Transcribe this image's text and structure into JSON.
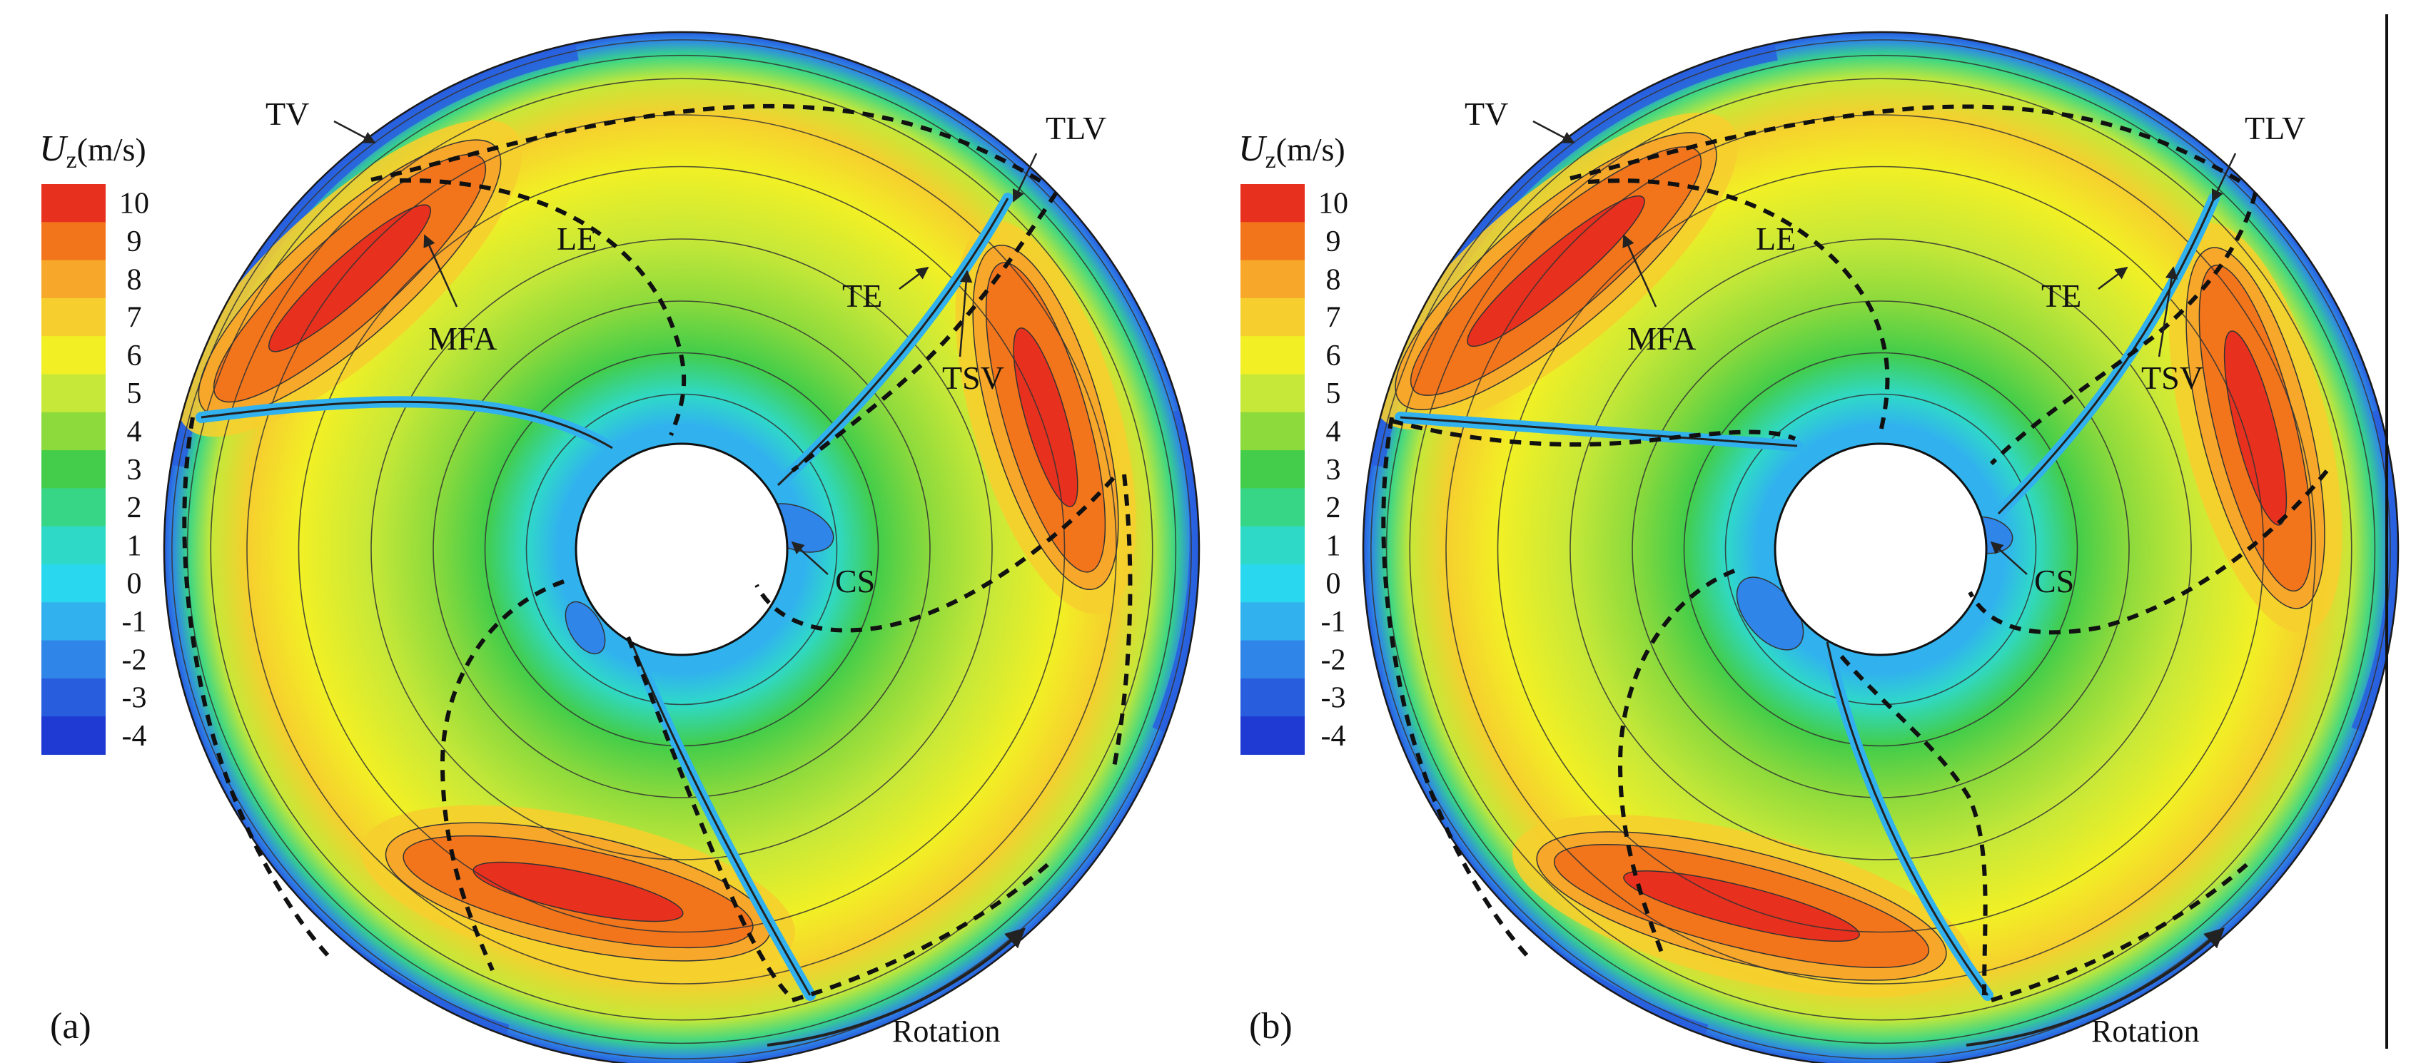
{
  "panels": [
    {
      "id": "a",
      "panel_label": "(a)",
      "colorbar": {
        "quantity_symbol": "U",
        "quantity_subscript": "z",
        "unit": "(m/s)",
        "ticks": [
          "10",
          "9",
          "8",
          "7",
          "6",
          "5",
          "4",
          "3",
          "2",
          "1",
          "0",
          "-1",
          "-2",
          "-3",
          "-4"
        ],
        "colors": [
          "#e8301e",
          "#f2751b",
          "#f7a82a",
          "#f6cf2e",
          "#f2f025",
          "#c6e838",
          "#8cda3c",
          "#43cd4a",
          "#37d687",
          "#2fd9c8",
          "#29d8ee",
          "#31b2ee",
          "#2f86e8",
          "#285ede",
          "#1e3ad2"
        ]
      },
      "annotations": [
        "TV",
        "LE",
        "MFA",
        "TE",
        "TLV",
        "TSV",
        "CS"
      ],
      "rotation_label": "Rotation"
    },
    {
      "id": "b",
      "panel_label": "(b)",
      "colorbar": {
        "quantity_symbol": "U",
        "quantity_subscript": "z",
        "unit": "(m/s)",
        "ticks": [
          "10",
          "9",
          "8",
          "7",
          "6",
          "5",
          "4",
          "3",
          "2",
          "1",
          "0",
          "-1",
          "-2",
          "-3",
          "-4"
        ],
        "colors": [
          "#e8301e",
          "#f2751b",
          "#f7a82a",
          "#f6cf2e",
          "#f2f025",
          "#c6e838",
          "#8cda3c",
          "#43cd4a",
          "#37d687",
          "#2fd9c8",
          "#29d8ee",
          "#31b2ee",
          "#2f86e8",
          "#285ede",
          "#1e3ad2"
        ]
      },
      "annotations": [
        "TV",
        "LE",
        "MFA",
        "TE",
        "TLV",
        "TSV",
        "CS"
      ],
      "rotation_label": "Rotation"
    }
  ]
}
